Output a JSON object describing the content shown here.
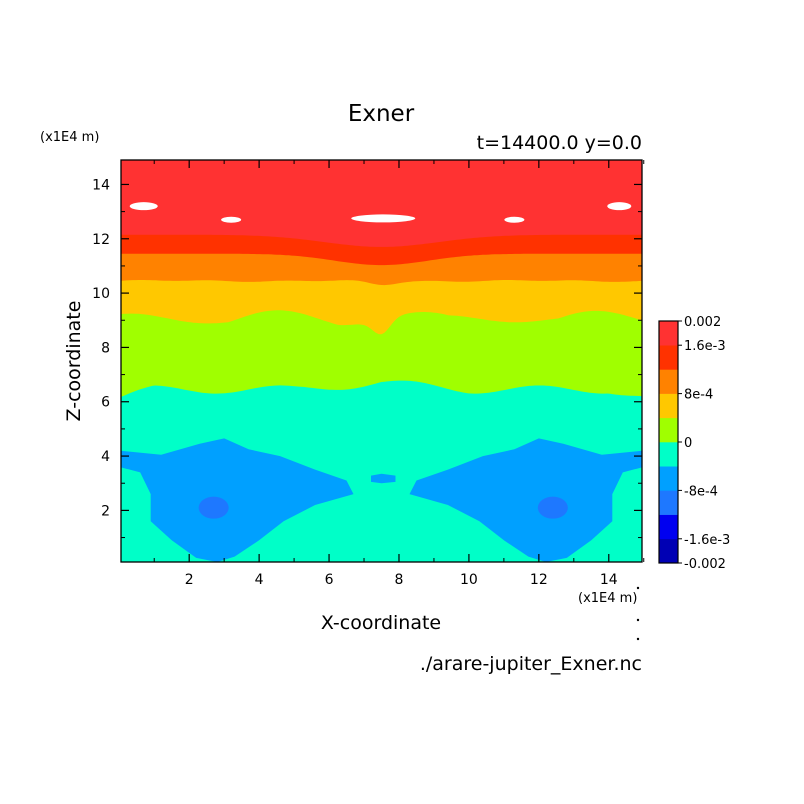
{
  "chart_data": {
    "type": "contour",
    "title": "Exner",
    "subtitle": "t=14400.0 y=0.0",
    "xlabel": "X-coordinate",
    "ylabel": "Z-coordinate",
    "x_unit_label": "(x1E4 m)",
    "y_unit_label": "(x1E4 m)",
    "source_label": "./arare-jupiter_Exner.nc",
    "xlim": [
      0.05,
      14.95
    ],
    "ylim": [
      0.1,
      14.9
    ],
    "x_ticks": [
      "2",
      "4",
      "6",
      "8",
      "10",
      "12",
      "14"
    ],
    "y_ticks": [
      "2",
      "4",
      "6",
      "8",
      "10",
      "12",
      "14"
    ],
    "grid": false,
    "colorbar": {
      "labels": [
        "0.002",
        "1.6e-3",
        "8e-4",
        "0",
        "-8e-4",
        "-1.6e-3",
        "-0.002"
      ],
      "levels": [
        -0.002,
        -0.0016,
        -0.0012,
        -0.0008,
        -0.0004,
        0,
        0.0004,
        0.0008,
        0.0012,
        0.0016,
        0.002
      ],
      "colors": [
        "#0000b4",
        "#0000f0",
        "#1e78ff",
        "#00a0ff",
        "#00ffc8",
        "#a0ff00",
        "#ffc800",
        "#ff8200",
        "#ff3200",
        "#ff3232"
      ]
    },
    "contour_bands": [
      {
        "value_range": [
          0.0016,
          0.002
        ],
        "color": "#ff3232",
        "z_range": [
          12.2,
          14.9
        ]
      },
      {
        "value_range": [
          0.0012,
          0.0016
        ],
        "color": "#ff3200",
        "z_range": [
          11.4,
          12.2
        ]
      },
      {
        "value_range": [
          0.0008,
          0.0012
        ],
        "color": "#ff8200",
        "z_range": [
          10.4,
          11.4
        ]
      },
      {
        "value_range": [
          0.0004,
          0.0008
        ],
        "color": "#ffc800",
        "z_range": [
          9.0,
          10.4
        ]
      },
      {
        "value_range": [
          0,
          0.0004
        ],
        "color": "#a0ff00",
        "z_range": [
          6.4,
          9.0
        ]
      },
      {
        "value_range": [
          -0.0004,
          0
        ],
        "color": "#00ffc8",
        "z_range": [
          0.1,
          6.4
        ]
      },
      {
        "value_range": [
          -0.0008,
          -0.0004
        ],
        "color": "#00a0ff",
        "regions": "two lobes near x=2-7 and x=8-13, z<4.6"
      },
      {
        "value_range": [
          -0.0012,
          -0.0008
        ],
        "color": "#1e78ff",
        "regions": "cores near (2.7,2.1) and (12.4,2.1)"
      }
    ]
  }
}
